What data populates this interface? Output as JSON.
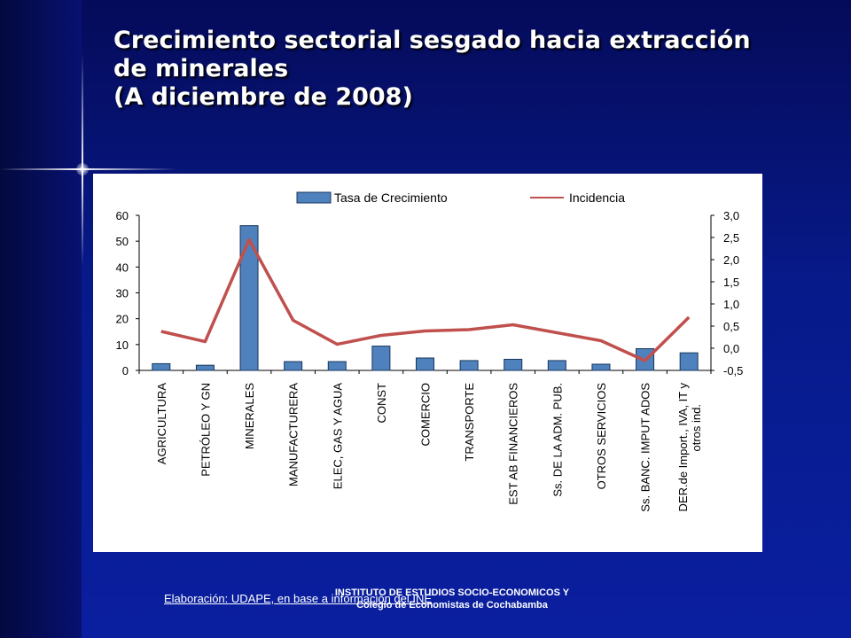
{
  "slide": {
    "title_line1": "Crecimiento sectorial sesgado hacia extracción",
    "title_line2": "de minerales",
    "title_line3": "(A diciembre de 2008)",
    "source": "Elaboración: UDAPE, en base a información del INE",
    "institution": "INSTITUTO DE ESTUDIOS SOCIO-ECONOMICOS Y Colegio de Economistas de Cochabamba"
  },
  "colors": {
    "bar_fill": "#4f81bd",
    "bar_stroke": "#17365d",
    "line": "#c0504d"
  },
  "chart_data": {
    "type": "bar",
    "categories": [
      "AGRICULTURA",
      "PETRÓLEO Y GN",
      "MINERALES",
      "MANUFACTURERA",
      "ELEC, GAS Y AGUA",
      "CONST",
      "COMERCIO",
      "TRANSPORTE",
      "EST AB FINANCIEROS",
      "Ss. DE LA ADM. PUB.",
      "OTROS SERVICIOS",
      "Ss. BANC. IMPUT ADOS",
      "DER.de Import., IVA, IT y otros ind."
    ],
    "series": [
      {
        "name": "Tasa de Crecimiento",
        "type": "bar",
        "axis": "left",
        "values": [
          2.6,
          2.0,
          56.0,
          3.4,
          3.4,
          9.4,
          4.8,
          3.8,
          4.3,
          3.8,
          2.4,
          8.4,
          6.8
        ]
      },
      {
        "name": "Incidencia",
        "type": "line",
        "axis": "right",
        "values": [
          0.38,
          0.15,
          2.45,
          0.63,
          0.09,
          0.29,
          0.39,
          0.42,
          0.53,
          0.35,
          0.17,
          -0.28,
          0.7
        ]
      }
    ],
    "y_left": {
      "min": 0,
      "max": 60,
      "ticks": [
        "0",
        "10",
        "20",
        "30",
        "40",
        "50",
        "60"
      ]
    },
    "y_right": {
      "min": -0.5,
      "max": 3.0,
      "ticks": [
        "-0,5",
        "0,0",
        "0,5",
        "1,0",
        "1,5",
        "2,0",
        "2,5",
        "3,0"
      ]
    },
    "legend_position": "top",
    "grid": false
  }
}
